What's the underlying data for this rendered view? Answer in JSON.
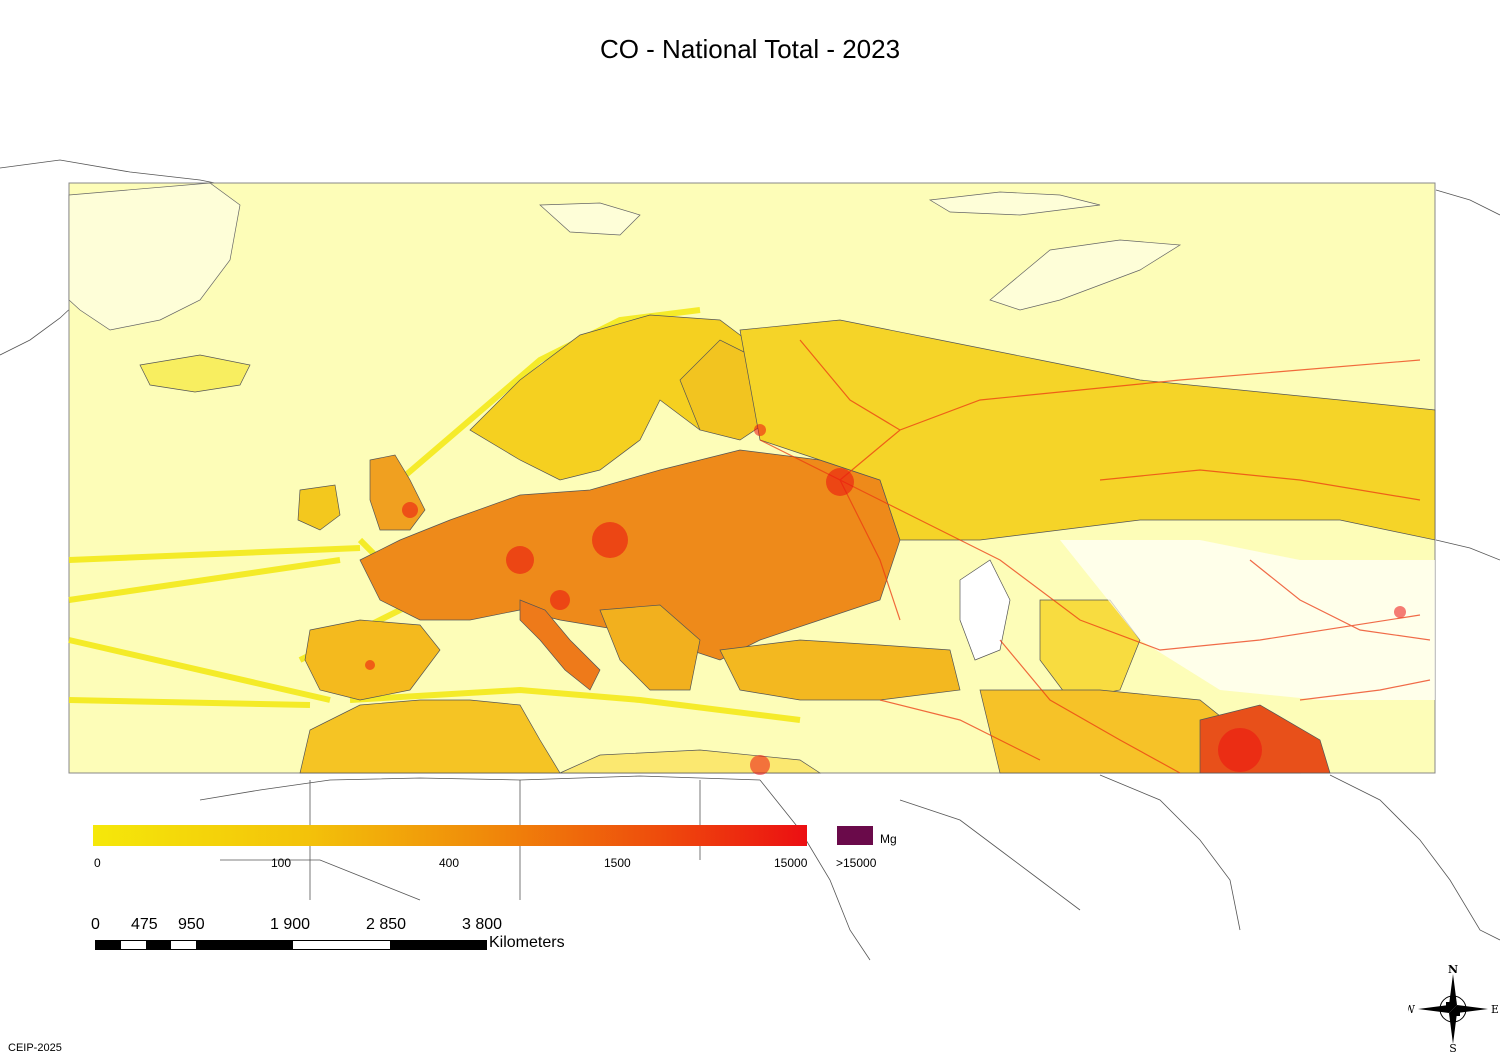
{
  "title": "CO - National Total - 2023",
  "legend": {
    "unit": "Mg",
    "ticks": [
      "0",
      "100",
      "400",
      "1500",
      "15000",
      ">15000"
    ],
    "colors": {
      "low": "#f5e80a",
      "mid": "#f08a0a",
      "high": "#ec0f12",
      "over_max": "#6a0a4a",
      "background": "#fdfdb8"
    }
  },
  "scale_bar": {
    "labels": [
      "0",
      "475",
      "950",
      "1 900",
      "2 850",
      "3 800"
    ],
    "unit": "Kilometers"
  },
  "compass": {
    "n": "N",
    "e": "E",
    "s": "S",
    "w": "W"
  },
  "credit": "CEIP-2025"
}
